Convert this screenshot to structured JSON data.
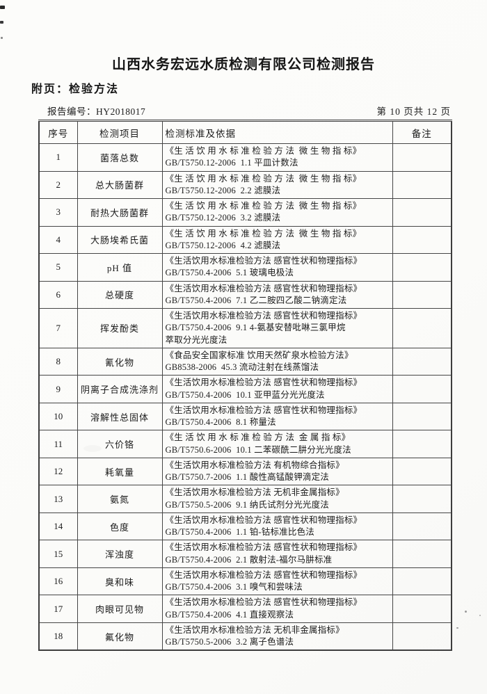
{
  "page": {
    "title": "山西水务宏远水质检测有限公司检测报告",
    "subtitle": "附页：检验方法",
    "report_no_line": "报告编号：HY2018017",
    "page_indicator": "第 10 页共 12 页"
  },
  "table": {
    "headers": [
      "序号",
      "检测项目",
      "检测标准及依据",
      "备注"
    ],
    "rows": [
      {
        "no": "1",
        "item": "菌落总数",
        "method_lines": [
          "《生 活 饮 用 水 标 准 检 验 方 法  微 生 物 指 标》",
          "GB/T5750.12-2006  1.1 平皿计数法"
        ],
        "remark": ""
      },
      {
        "no": "2",
        "item": "总大肠菌群",
        "method_lines": [
          "《生 活 饮 用 水 标 准 检 验 方 法  微 生 物 指 标》",
          "GB/T5750.12-2006  2.2 滤膜法"
        ],
        "remark": ""
      },
      {
        "no": "3",
        "item": "耐热大肠菌群",
        "method_lines": [
          "《生 活 饮 用 水 标 准 检 验 方 法  微 生 物 指 标》",
          "GB/T5750.12-2006  3.2 滤膜法"
        ],
        "remark": ""
      },
      {
        "no": "4",
        "item": "大肠埃希氏菌",
        "method_lines": [
          "《生 活 饮 用 水 标 准 检 验 方 法  微 生 物 指 标》",
          "GB/T5750.12-2006  4.2 滤膜法"
        ],
        "remark": ""
      },
      {
        "no": "5",
        "item": "pH 值",
        "method_lines": [
          "《生活饮用水标准检验方法 感官性状和物理指标》",
          "GB/T5750.4-2006  5.1 玻璃电极法"
        ],
        "remark": ""
      },
      {
        "no": "6",
        "item": "总硬度",
        "method_lines": [
          "《生活饮用水标准检验方法 感官性状和物理指标》",
          "GB/T5750.4-2006  7.1 乙二胺四乙酸二钠滴定法"
        ],
        "remark": ""
      },
      {
        "no": "7",
        "item": "挥发酚类",
        "method_lines": [
          "《生活饮用水标准检验方法 感官性状和物理指标》",
          "GB/T5750.4-2006  9.1 4-氨基安替吡啉三氯甲烷",
          "萃取分光光度法"
        ],
        "remark": ""
      },
      {
        "no": "8",
        "item": "氰化物",
        "method_lines": [
          "《食品安全国家标准 饮用天然矿泉水检验方法》",
          "GB8538-2006  45.3 流动注射在线蒸馏法"
        ],
        "remark": ""
      },
      {
        "no": "9",
        "item": "阴离子合成洗涤剂",
        "method_lines": [
          "《生活饮用水标准检验方法 感官性状和物理指标》",
          "GB/T5750.4-2006  10.1 亚甲蓝分光光度法"
        ],
        "remark": ""
      },
      {
        "no": "10",
        "item": "溶解性总固体",
        "method_lines": [
          "《生活饮用水标准检验方法 感官性状和物理指标》",
          "GB/T5750.4-2006  8.1 称量法"
        ],
        "remark": ""
      },
      {
        "no": "11",
        "item": "六价铬",
        "method_lines": [
          "《生 活 饮 用 水 标 准 检 验 方 法  金 属 指 标》",
          "GB/T5750.6-2006  10.1 二苯碳酰二肼分光光度法"
        ],
        "remark": ""
      },
      {
        "no": "12",
        "item": "耗氧量",
        "method_lines": [
          "《生活饮用水标准检验方法 有机物综合指标》",
          "GB/T5750.7-2006  1.1 酸性高锰酸钾滴定法"
        ],
        "remark": ""
      },
      {
        "no": "13",
        "item": "氨氮",
        "method_lines": [
          "《生活饮用水标准检验方法 无机非金属指标》",
          "GB/T5750.5-2006  9.1 纳氏试剂分光光度法"
        ],
        "remark": ""
      },
      {
        "no": "14",
        "item": "色度",
        "method_lines": [
          "《生活饮用水标准检验方法 感官性状和物理指标》",
          "GB/T5750.4-2006  1.1 铂-钴标准比色法"
        ],
        "remark": ""
      },
      {
        "no": "15",
        "item": "浑浊度",
        "method_lines": [
          "《生活饮用水标准检验方法 感官性状和物理指标》",
          "GB/T5750.4-2006  2.1 散射法-福尔马肼标准"
        ],
        "remark": ""
      },
      {
        "no": "16",
        "item": "臭和味",
        "method_lines": [
          "《生活饮用水标准检验方法 感官性状和物理指标》",
          "GB/T5750.4-2006  3.1 嗅气和尝味法"
        ],
        "remark": ""
      },
      {
        "no": "17",
        "item": "肉眼可见物",
        "method_lines": [
          "《生活饮用水标准检验方法 感官性状和物理指标》",
          "GB/T5750.4-2006  4.1 直接观察法"
        ],
        "remark": ""
      },
      {
        "no": "18",
        "item": "氟化物",
        "method_lines": [
          "《生活饮用水标准检验方法 无机非金属指标》",
          "GB/T5750.5-2006  3.2 离子色谱法"
        ],
        "remark": ""
      }
    ]
  }
}
